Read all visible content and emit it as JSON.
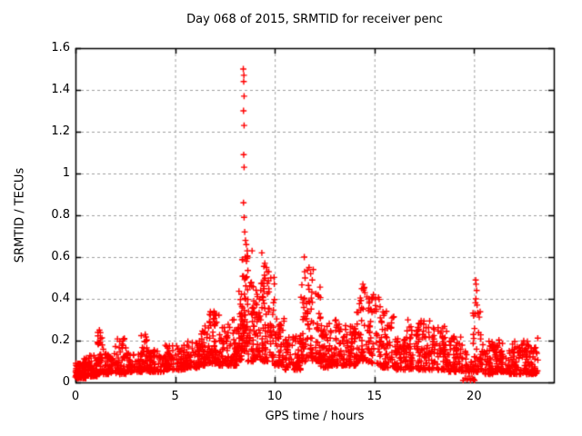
{
  "window": {
    "background": "#ffffff"
  },
  "chart_data": {
    "type": "scatter",
    "title": "Day 068 of 2015, SRMTID for receiver penc",
    "xlabel": "GPS time / hours",
    "ylabel": "SRMTID / TECUs",
    "xlim": [
      0,
      24
    ],
    "ylim": [
      0,
      1.6
    ],
    "xticks": [
      0,
      5,
      10,
      15,
      20
    ],
    "yticks": [
      0,
      0.2,
      0.4,
      0.6,
      0.8,
      1,
      1.2,
      1.4,
      1.6
    ],
    "grid": true,
    "legend": "none",
    "marker": "plus",
    "marker_color": "#ff0000",
    "grid_color": "#a0a0a0",
    "border_color": "#000000",
    "x_data_extent": [
      0,
      23.2
    ],
    "peak_point": [
      8.45,
      1.5
    ],
    "band_bins": [
      [
        0.0,
        0.3,
        0.02,
        0.1,
        50
      ],
      [
        0.3,
        0.7,
        0.02,
        0.12,
        55
      ],
      [
        0.7,
        1.1,
        0.03,
        0.13,
        50
      ],
      [
        1.1,
        1.4,
        0.04,
        0.25,
        40
      ],
      [
        1.4,
        2.0,
        0.04,
        0.14,
        60
      ],
      [
        2.0,
        2.6,
        0.04,
        0.21,
        55
      ],
      [
        2.6,
        3.3,
        0.05,
        0.15,
        60
      ],
      [
        3.3,
        3.7,
        0.05,
        0.23,
        40
      ],
      [
        3.7,
        4.5,
        0.05,
        0.16,
        70
      ],
      [
        4.5,
        5.5,
        0.06,
        0.18,
        85
      ],
      [
        5.5,
        6.3,
        0.07,
        0.2,
        70
      ],
      [
        6.3,
        6.7,
        0.08,
        0.27,
        40
      ],
      [
        6.7,
        7.2,
        0.09,
        0.34,
        55
      ],
      [
        7.2,
        7.8,
        0.08,
        0.28,
        55
      ],
      [
        7.8,
        8.2,
        0.08,
        0.3,
        45
      ],
      [
        8.2,
        8.35,
        0.1,
        0.45,
        30
      ],
      [
        8.35,
        8.65,
        0.15,
        0.62,
        60
      ],
      [
        8.65,
        9.0,
        0.1,
        0.5,
        45
      ],
      [
        9.0,
        9.3,
        0.12,
        0.45,
        35
      ],
      [
        9.3,
        10.0,
        0.1,
        0.56,
        80
      ],
      [
        10.0,
        10.5,
        0.08,
        0.32,
        50
      ],
      [
        10.5,
        11.3,
        0.06,
        0.22,
        75
      ],
      [
        11.3,
        11.65,
        0.1,
        0.55,
        40
      ],
      [
        11.65,
        12.3,
        0.1,
        0.48,
        65
      ],
      [
        12.3,
        12.7,
        0.07,
        0.28,
        45
      ],
      [
        12.7,
        13.3,
        0.08,
        0.3,
        60
      ],
      [
        13.3,
        14.1,
        0.08,
        0.3,
        75
      ],
      [
        14.1,
        14.7,
        0.1,
        0.46,
        55
      ],
      [
        14.7,
        15.3,
        0.09,
        0.42,
        55
      ],
      [
        15.3,
        16.0,
        0.07,
        0.34,
        65
      ],
      [
        16.0,
        16.6,
        0.06,
        0.22,
        55
      ],
      [
        16.6,
        17.3,
        0.06,
        0.3,
        65
      ],
      [
        17.3,
        18.0,
        0.06,
        0.3,
        65
      ],
      [
        18.0,
        18.7,
        0.06,
        0.28,
        65
      ],
      [
        18.7,
        19.4,
        0.05,
        0.22,
        60
      ],
      [
        19.4,
        19.9,
        0.05,
        0.15,
        25
      ],
      [
        19.9,
        20.4,
        0.05,
        0.4,
        45
      ],
      [
        20.4,
        21.0,
        0.04,
        0.2,
        55
      ],
      [
        21.0,
        21.7,
        0.05,
        0.22,
        60
      ],
      [
        21.7,
        22.3,
        0.04,
        0.2,
        55
      ],
      [
        22.3,
        23.2,
        0.04,
        0.22,
        90
      ]
    ],
    "outlier_points": [
      [
        8.42,
        1.5
      ],
      [
        8.45,
        1.47
      ],
      [
        8.44,
        1.44
      ],
      [
        8.46,
        1.37
      ],
      [
        8.43,
        1.3
      ],
      [
        8.46,
        1.23
      ],
      [
        8.44,
        1.09
      ],
      [
        8.46,
        1.03
      ],
      [
        8.43,
        0.86
      ],
      [
        8.46,
        0.79
      ],
      [
        8.49,
        0.72
      ],
      [
        8.53,
        0.68
      ],
      [
        8.57,
        0.66
      ],
      [
        8.62,
        0.63
      ],
      [
        8.86,
        0.63
      ],
      [
        8.52,
        0.6
      ],
      [
        8.58,
        0.58
      ],
      [
        9.35,
        0.62
      ],
      [
        9.5,
        0.57
      ],
      [
        9.58,
        0.55
      ],
      [
        9.7,
        0.53
      ],
      [
        9.8,
        0.5
      ],
      [
        11.48,
        0.6
      ],
      [
        11.5,
        0.53
      ],
      [
        11.52,
        0.5
      ],
      [
        11.72,
        0.55
      ],
      [
        11.8,
        0.52
      ],
      [
        11.93,
        0.54
      ],
      [
        11.88,
        0.49
      ],
      [
        14.42,
        0.47
      ],
      [
        14.46,
        0.45
      ],
      [
        14.52,
        0.43
      ],
      [
        14.95,
        0.42
      ],
      [
        15.05,
        0.4
      ],
      [
        15.6,
        0.34
      ],
      [
        6.95,
        0.34
      ],
      [
        7.0,
        0.33
      ],
      [
        7.05,
        0.32
      ],
      [
        20.08,
        0.49
      ],
      [
        20.1,
        0.47
      ],
      [
        20.13,
        0.44
      ],
      [
        20.09,
        0.4
      ],
      [
        20.15,
        0.37
      ],
      [
        20.2,
        0.33
      ],
      [
        1.2,
        0.25
      ],
      [
        2.45,
        0.21
      ],
      [
        3.5,
        0.23
      ],
      [
        6.5,
        0.27
      ],
      [
        19.45,
        0.01
      ],
      [
        19.55,
        0.02
      ],
      [
        19.65,
        0.015
      ],
      [
        19.75,
        0.03
      ],
      [
        19.82,
        0.01
      ],
      [
        19.9,
        0.02
      ],
      [
        19.97,
        0.015
      ],
      [
        20.02,
        0.01
      ]
    ]
  }
}
